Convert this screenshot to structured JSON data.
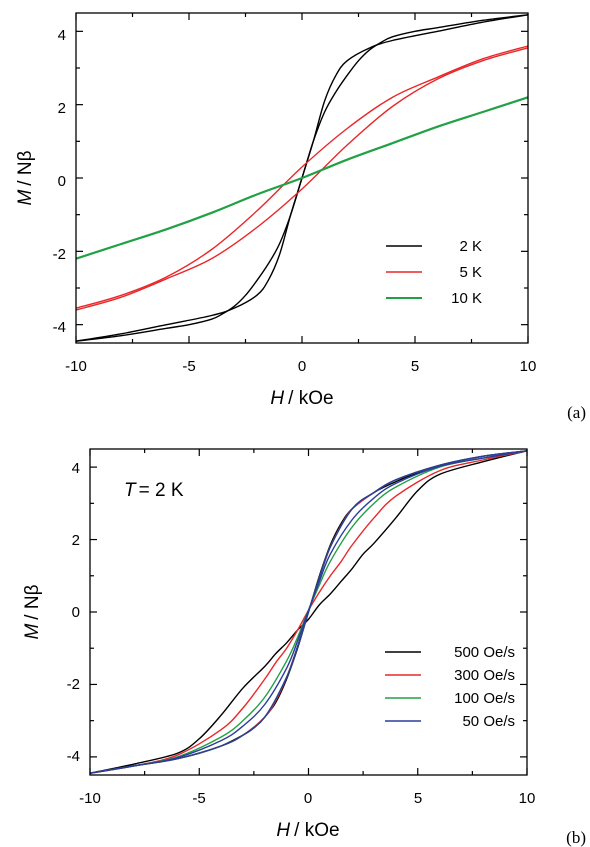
{
  "chart_data": [
    {
      "type": "line",
      "panel_label": "(a)",
      "xlabel_var": "H",
      "xlabel_unit": "/ kOe",
      "ylabel_var": "M",
      "ylabel_unit": "/ Nβ",
      "xlim": [
        -10,
        10
      ],
      "ylim": [
        -4.5,
        4.5
      ],
      "xticks": [
        -10,
        -5,
        0,
        5,
        10
      ],
      "yticks": [
        -4,
        -2,
        0,
        2,
        4
      ],
      "legend_position": "lower-right",
      "series": [
        {
          "name": "2 K",
          "color": "#000000",
          "up_branch": {
            "x": [
              -10,
              -8,
              -6,
              -4,
              -3,
              -2,
              -1.5,
              -1,
              -0.5,
              0,
              0.5,
              1,
              1.5,
              2,
              2.5,
              3,
              3.5,
              4,
              5,
              6,
              8,
              10
            ],
            "y": [
              -4.45,
              -4.25,
              -4.0,
              -3.75,
              -3.55,
              -3.2,
              -2.8,
              -2.1,
              -1.0,
              0.0,
              1.0,
              1.8,
              2.35,
              2.8,
              3.2,
              3.5,
              3.7,
              3.85,
              4.0,
              4.1,
              4.3,
              4.45
            ]
          },
          "down_branch": {
            "x": [
              10,
              8,
              6,
              4,
              3,
              2,
              1.5,
              1,
              0.5,
              0,
              -0.5,
              -1,
              -1.5,
              -2,
              -2.5,
              -3,
              -3.5,
              -4,
              -5,
              -6,
              -8,
              -10
            ],
            "y": [
              4.45,
              4.25,
              4.0,
              3.75,
              3.55,
              3.2,
              2.8,
              2.1,
              1.0,
              0.0,
              -1.0,
              -1.8,
              -2.35,
              -2.8,
              -3.2,
              -3.5,
              -3.7,
              -3.85,
              -4.0,
              -4.1,
              -4.3,
              -4.45
            ]
          }
        },
        {
          "name": "5 K",
          "color": "#e8282a",
          "up_branch": {
            "x": [
              -10,
              -8,
              -6,
              -4,
              -2,
              0,
              2,
              4,
              6,
              8,
              10
            ],
            "y": [
              -3.6,
              -3.25,
              -2.75,
              -2.2,
              -1.35,
              -0.3,
              0.9,
              1.95,
              2.7,
              3.2,
              3.55
            ]
          },
          "down_branch": {
            "x": [
              10,
              8,
              6,
              4,
              2,
              0,
              -2,
              -4,
              -6,
              -8,
              -10
            ],
            "y": [
              3.6,
              3.25,
              2.75,
              2.2,
              1.35,
              0.3,
              -0.9,
              -1.95,
              -2.7,
              -3.2,
              -3.55
            ]
          }
        },
        {
          "name": "10 K",
          "color": "#22a045",
          "up_branch": {
            "x": [
              -10,
              -8,
              -6,
              -4,
              -2,
              0,
              2,
              4,
              6,
              8,
              10
            ],
            "y": [
              -2.2,
              -1.8,
              -1.4,
              -0.95,
              -0.45,
              0.0,
              0.5,
              0.95,
              1.4,
              1.8,
              2.2
            ]
          }
        }
      ]
    },
    {
      "type": "line",
      "panel_label": "(b)",
      "annotation_var": "T",
      "annotation_value": "= 2 K",
      "xlabel_var": "H",
      "xlabel_unit": "/ kOe",
      "ylabel_var": "M",
      "ylabel_unit": "/ Nβ",
      "xlim": [
        -10,
        10
      ],
      "ylim": [
        -4.5,
        4.5
      ],
      "xticks": [
        -10,
        -5,
        0,
        5,
        10
      ],
      "yticks": [
        -4,
        -2,
        0,
        2,
        4
      ],
      "legend_position": "lower-right",
      "series": [
        {
          "name": "500 Oe/s",
          "color": "#000000",
          "up_branch": {
            "x": [
              -10,
              -8,
              -6,
              -5,
              -4,
              -3,
              -2.5,
              -2,
              -1.5,
              -1,
              -0.5,
              0,
              0.5,
              1,
              1.5,
              2,
              3,
              4,
              5,
              6,
              8,
              10
            ],
            "y": [
              -4.45,
              -4.25,
              -4.05,
              -3.9,
              -3.7,
              -3.4,
              -3.2,
              -2.9,
              -2.5,
              -1.85,
              -1.0,
              0.0,
              1.0,
              1.85,
              2.45,
              2.85,
              3.3,
              3.6,
              3.85,
              4.05,
              4.3,
              4.45
            ]
          },
          "down_branch": {
            "x": [
              10,
              8,
              6,
              5,
              4,
              3,
              2.5,
              2,
              1.5,
              1,
              0.5,
              0,
              -0.5,
              -1,
              -1.5,
              -2,
              -3,
              -4,
              -5,
              -6,
              -8,
              -10
            ],
            "y": [
              4.45,
              4.15,
              3.8,
              3.35,
              2.6,
              1.9,
              1.6,
              1.2,
              0.85,
              0.5,
              0.2,
              -0.2,
              -0.5,
              -0.85,
              -1.15,
              -1.5,
              -2.1,
              -2.85,
              -3.5,
              -3.9,
              -4.2,
              -4.45
            ]
          }
        },
        {
          "name": "300 Oe/s",
          "color": "#e8282a",
          "up_branch": {
            "x": [
              -10,
              -8,
              -6,
              -4,
              -3,
              -2,
              -1.5,
              -1,
              -0.5,
              0,
              0.5,
              1,
              1.5,
              2,
              3,
              4,
              6,
              8,
              10
            ],
            "y": [
              -4.45,
              -4.25,
              -4.05,
              -3.7,
              -3.4,
              -2.9,
              -2.45,
              -1.8,
              -0.95,
              0.0,
              0.95,
              1.8,
              2.4,
              2.85,
              3.3,
              3.65,
              4.05,
              4.3,
              4.45
            ]
          },
          "down_branch": {
            "x": [
              10,
              8,
              6,
              4,
              3,
              2,
              1.5,
              1,
              0.5,
              0,
              -0.5,
              -1,
              -1.5,
              -2,
              -3,
              -4,
              -6,
              -8,
              -10
            ],
            "y": [
              4.45,
              4.2,
              3.9,
              3.2,
              2.6,
              1.85,
              1.4,
              1.0,
              0.55,
              0.05,
              -0.5,
              -1.0,
              -1.4,
              -1.85,
              -2.65,
              -3.25,
              -3.95,
              -4.25,
              -4.45
            ]
          }
        },
        {
          "name": "100 Oe/s",
          "color": "#22a045",
          "up_branch": {
            "x": [
              -10,
              -8,
              -6,
              -4,
              -3,
              -2,
              -1,
              -0.5,
              0,
              0.5,
              1,
              2,
              3,
              4,
              6,
              8,
              10
            ],
            "y": [
              -4.45,
              -4.25,
              -4.05,
              -3.7,
              -3.4,
              -2.9,
              -1.8,
              -0.95,
              0.0,
              0.95,
              1.8,
              2.85,
              3.3,
              3.65,
              4.05,
              4.3,
              4.45
            ]
          },
          "down_branch": {
            "x": [
              10,
              8,
              6,
              4,
              3,
              2,
              1,
              0.5,
              0,
              -0.5,
              -1,
              -2,
              -3,
              -4,
              -6,
              -8,
              -10
            ],
            "y": [
              4.45,
              4.25,
              4.0,
              3.45,
              3.0,
              2.35,
              1.4,
              0.75,
              0.05,
              -0.7,
              -1.35,
              -2.35,
              -3.0,
              -3.45,
              -4.0,
              -4.25,
              -4.45
            ]
          }
        },
        {
          "name": "50 Oe/s",
          "color": "#2a3d9c",
          "up_branch": {
            "x": [
              -10,
              -8,
              -6,
              -4,
              -3,
              -2,
              -1,
              -0.5,
              0,
              0.5,
              1,
              2,
              3,
              4,
              6,
              8,
              10
            ],
            "y": [
              -4.45,
              -4.25,
              -4.05,
              -3.7,
              -3.4,
              -2.9,
              -1.8,
              -0.95,
              0.0,
              0.95,
              1.8,
              2.85,
              3.3,
              3.65,
              4.05,
              4.3,
              4.45
            ]
          },
          "down_branch": {
            "x": [
              10,
              8,
              6,
              4,
              3,
              2,
              1,
              0.5,
              0,
              -0.5,
              -1,
              -2,
              -3,
              -4,
              -6,
              -8,
              -10
            ],
            "y": [
              4.45,
              4.25,
              4.02,
              3.55,
              3.15,
              2.55,
              1.6,
              0.85,
              0.05,
              -0.8,
              -1.55,
              -2.55,
              -3.15,
              -3.55,
              -4.02,
              -4.25,
              -4.45
            ]
          }
        }
      ]
    }
  ]
}
